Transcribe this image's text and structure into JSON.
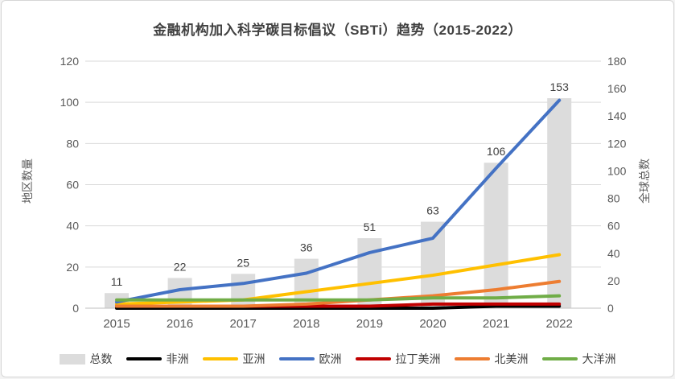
{
  "chart_data": {
    "type": "combo-bar-line",
    "title": "金融机构加入科学碳目标倡议（SBTi）趋势（2015-2022）",
    "categories": [
      "2015",
      "2016",
      "2017",
      "2018",
      "2019",
      "2020",
      "2021",
      "2022"
    ],
    "bar_series": {
      "name": "总数",
      "axis": "right",
      "color": "#dcdcdc",
      "values": [
        11,
        22,
        25,
        36,
        51,
        63,
        106,
        153
      ],
      "data_labels": [
        11,
        22,
        25,
        36,
        51,
        63,
        106,
        153
      ]
    },
    "line_series": [
      {
        "name": "非洲",
        "color": "#000000",
        "values": [
          0,
          0,
          0,
          0,
          0,
          0,
          1,
          1
        ]
      },
      {
        "name": "亚洲",
        "color": "#ffc000",
        "values": [
          2,
          3,
          4,
          8,
          12,
          16,
          21,
          26
        ]
      },
      {
        "name": "欧洲",
        "color": "#4472c4",
        "values": [
          3,
          9,
          12,
          17,
          27,
          34,
          68,
          101
        ]
      },
      {
        "name": "拉丁美洲",
        "color": "#c00000",
        "values": [
          1,
          1,
          1,
          1,
          1,
          2,
          2,
          2
        ]
      },
      {
        "name": "北美洲",
        "color": "#ed7d31",
        "values": [
          1,
          1,
          1,
          2,
          4,
          6,
          9,
          13
        ]
      },
      {
        "name": "大洋洲",
        "color": "#70ad47",
        "values": [
          4,
          4,
          4,
          4,
          4,
          5,
          5,
          6
        ]
      }
    ],
    "left_axis": {
      "title": "地区数量",
      "min": 0,
      "max": 120,
      "step": 20,
      "ticks": [
        "0",
        "20",
        "40",
        "60",
        "80",
        "100",
        "120"
      ]
    },
    "right_axis": {
      "title": "全球总数",
      "min": 0,
      "max": 180,
      "step": 20,
      "ticks": [
        "0",
        "20",
        "40",
        "60",
        "80",
        "100",
        "120",
        "140",
        "160",
        "180"
      ]
    },
    "legend_position": "bottom",
    "grid": true,
    "style_colors": {
      "gridline": "#d9d9d9",
      "axis_line": "#bfbfbf",
      "tick_label": "#595959",
      "bar_label": "#404040",
      "title": "#404040"
    }
  }
}
